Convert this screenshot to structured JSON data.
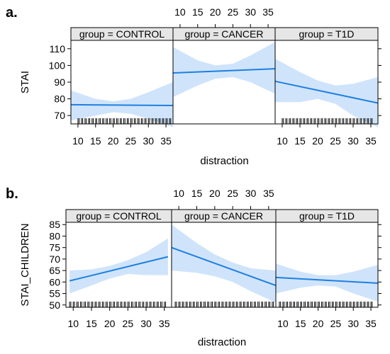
{
  "chart_data": [
    {
      "type": "line",
      "panel_label": "a.",
      "xlabel": "distraction",
      "ylabel": "STAI",
      "xlim": [
        8,
        37
      ],
      "ylim": [
        65,
        115
      ],
      "xticks": [
        10,
        15,
        20,
        25,
        30,
        35
      ],
      "yticks": [
        70,
        80,
        90,
        100,
        110
      ],
      "panels": [
        {
          "title": "group = CONTROL",
          "fit": [
            [
              8,
              76.5
            ],
            [
              37,
              76.0
            ]
          ],
          "band": [
            [
              8,
              85,
              67
            ],
            [
              15,
              80,
              70
            ],
            [
              20,
              78.5,
              72
            ],
            [
              25,
              80,
              71
            ],
            [
              30,
              84,
              68
            ],
            [
              37,
              90,
              63
            ]
          ],
          "rug": [
            10,
            11,
            12,
            13,
            14,
            15,
            16,
            17,
            18,
            19,
            20,
            21,
            22,
            23,
            24,
            25,
            26,
            27,
            28,
            29,
            30,
            31,
            32,
            33,
            34,
            35,
            36
          ]
        },
        {
          "title": "group = CANCER",
          "fit": [
            [
              8,
              95.5
            ],
            [
              37,
              98.0
            ]
          ],
          "band": [
            [
              8,
              111,
              81
            ],
            [
              15,
              103,
              88
            ],
            [
              20,
              100,
              92
            ],
            [
              25,
              101,
              93
            ],
            [
              30,
              106,
              90
            ],
            [
              37,
              114,
              83
            ]
          ],
          "rug": []
        },
        {
          "title": "group = T1D",
          "fit": [
            [
              8,
              90.5
            ],
            [
              37,
              77.5
            ]
          ],
          "band": [
            [
              8,
              104,
              78
            ],
            [
              15,
              96,
              78
            ],
            [
              20,
              91,
              80
            ],
            [
              25,
              88,
              77
            ],
            [
              30,
              89,
              70
            ],
            [
              37,
              93,
              63
            ]
          ],
          "rug": [
            10,
            11,
            12,
            13,
            14,
            15,
            16,
            17,
            18,
            19,
            20,
            21,
            22,
            23,
            24,
            25,
            26,
            27,
            28,
            29,
            30,
            31,
            32,
            33,
            34,
            35
          ]
        }
      ]
    },
    {
      "type": "line",
      "panel_label": "b.",
      "xlabel": "distraction",
      "ylabel": "STAI_CHILDREN",
      "xlim": [
        8,
        37
      ],
      "ylim": [
        49,
        86
      ],
      "xticks": [
        10,
        15,
        20,
        25,
        30,
        35
      ],
      "yticks": [
        50,
        55,
        60,
        65,
        70,
        75,
        80,
        85
      ],
      "panels": [
        {
          "title": "group = CONTROL",
          "fit": [
            [
              9,
              60.5
            ],
            [
              36,
              71.0
            ]
          ],
          "band": [
            [
              9,
              65,
              55
            ],
            [
              15,
              65.5,
              58.5
            ],
            [
              20,
              67,
              61.5
            ],
            [
              25,
              69.5,
              63.5
            ],
            [
              30,
              73,
              63
            ],
            [
              36,
              79,
              63
            ]
          ],
          "rug": [
            9,
            10,
            11,
            12,
            13,
            14,
            15,
            16,
            17,
            18,
            19,
            20,
            21,
            22,
            23,
            24,
            25,
            26,
            27,
            28,
            29,
            30,
            31,
            32,
            33,
            34,
            35
          ]
        },
        {
          "title": "group = CANCER",
          "fit": [
            [
              8,
              75.0
            ],
            [
              37,
              58.5
            ]
          ],
          "band": [
            [
              8,
              85,
              65
            ],
            [
              15,
              77,
              64
            ],
            [
              20,
              72,
              62.5
            ],
            [
              25,
              68.5,
              60
            ],
            [
              30,
              66,
              56
            ],
            [
              37,
              65,
              51
            ]
          ],
          "rug": [
            9,
            10,
            11,
            12,
            13,
            14,
            15,
            16,
            17,
            18,
            19,
            20,
            21,
            22,
            23,
            24,
            25,
            26,
            27,
            28,
            29,
            30,
            31,
            32,
            33,
            34,
            35,
            36
          ]
        },
        {
          "title": "group = T1D",
          "fit": [
            [
              8,
              62.0
            ],
            [
              37,
              59.5
            ]
          ],
          "band": [
            [
              8,
              68,
              55
            ],
            [
              15,
              64.5,
              57.5
            ],
            [
              20,
              63,
              58.5
            ],
            [
              25,
              63,
              58
            ],
            [
              30,
              64.5,
              55
            ],
            [
              37,
              67.5,
              51.5
            ]
          ],
          "rug": [
            9,
            10,
            11,
            12,
            13,
            14,
            15,
            16,
            17,
            18,
            19,
            20,
            21,
            22,
            23,
            24,
            25,
            26,
            27,
            28,
            29,
            30,
            31,
            32,
            33,
            34,
            35
          ]
        }
      ]
    }
  ],
  "colors": {
    "line": "#1f7fe0",
    "band": "#cfe4fb",
    "strip": "#e6e6e6",
    "axis": "#000000"
  }
}
